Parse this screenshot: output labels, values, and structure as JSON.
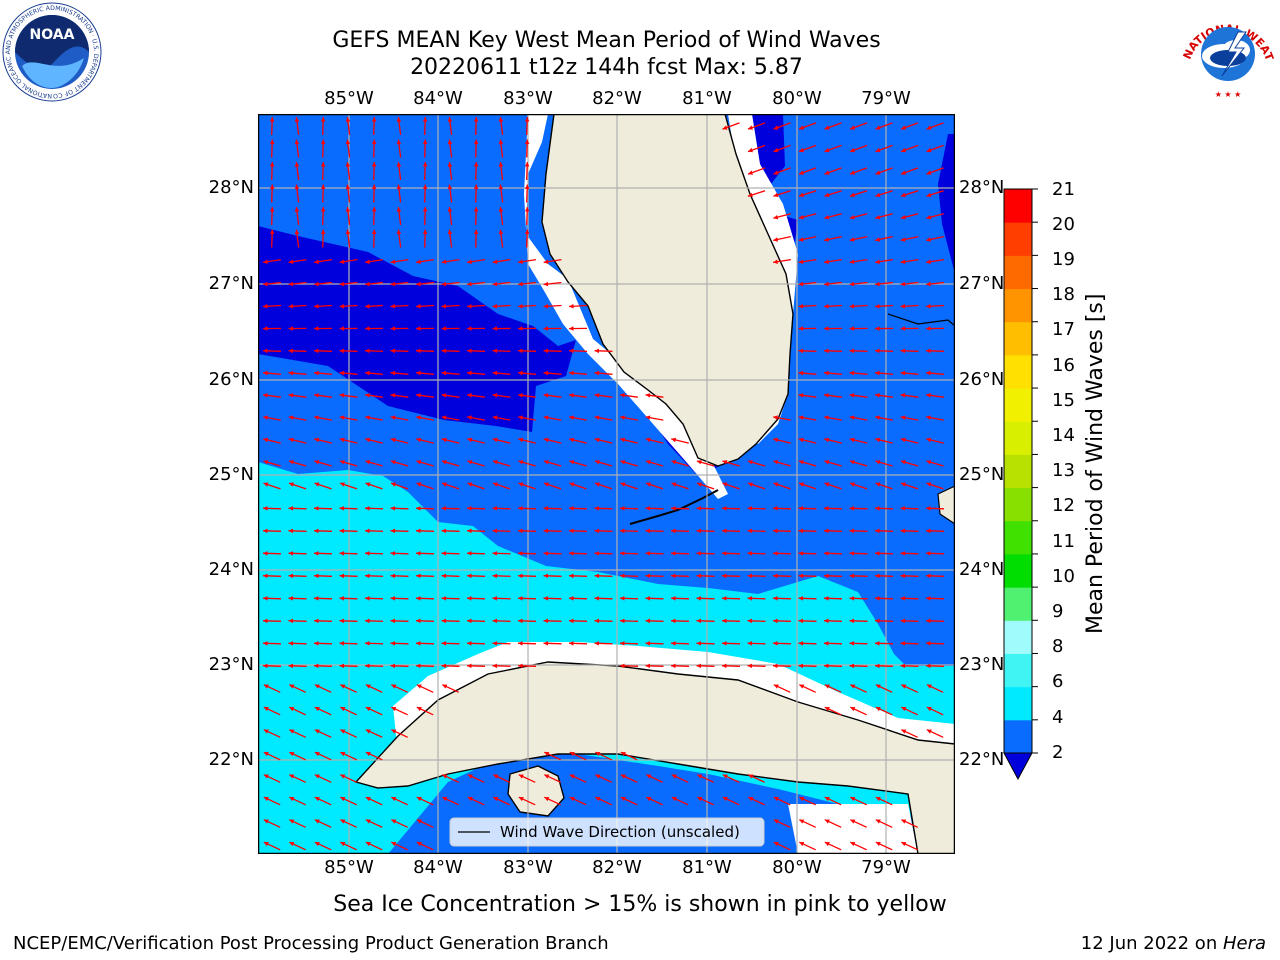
{
  "title_line1": "GEFS MEAN Key West Mean Period of Wind Waves",
  "title_line2": "20220611 t12z 144h fcst   Max: 5.87",
  "logos": {
    "left": {
      "name": "noaa-logo",
      "text": "NOAA",
      "ring": "NATIONAL OCEANIC AND ATMOSPHERIC ADMINISTRATION · U.S. DEPARTMENT OF COMMERCE"
    },
    "right": {
      "name": "nws-logo",
      "ring": "NATIONAL WEATHER SERVICE"
    }
  },
  "map": {
    "lon_ticks": [
      "85°W",
      "84°W",
      "83°W",
      "82°W",
      "81°W",
      "80°W",
      "79°W"
    ],
    "lat_ticks": [
      "28°N",
      "27°N",
      "26°N",
      "25°N",
      "24°N",
      "23°N",
      "22°N"
    ],
    "lon_range": [
      -86,
      -78.35
    ],
    "lat_range": [
      21.05,
      28.8
    ],
    "legend_label": "Wind Wave Direction (unscaled)"
  },
  "colorbar": {
    "label": "Mean Period of Wind Waves [s]",
    "levels": [
      "2",
      "4",
      "6",
      "8",
      "9",
      "10",
      "11",
      "12",
      "13",
      "14",
      "15",
      "16",
      "17",
      "18",
      "19",
      "20",
      "21"
    ],
    "colors": [
      "#0a6cff",
      "#00eaff",
      "#40f4f4",
      "#a0fcfc",
      "#50f070",
      "#00dd00",
      "#40e000",
      "#88e000",
      "#b8e000",
      "#d8f000",
      "#f0f000",
      "#ffe000",
      "#ffbe00",
      "#ff9400",
      "#ff6a00",
      "#ff3e00",
      "#ff0000"
    ],
    "under_color": "#0000dd"
  },
  "footer": {
    "sea_ice_note": "Sea Ice Concentration > 15% is shown in pink to yellow",
    "left": "NCEP/EMC/Verification Post Processing Product Generation Branch",
    "right_date": "12 Jun 2022 on ",
    "right_host": "Hera"
  },
  "colors": {
    "land": "#efecdc",
    "wave_lt4": "#0a6cff",
    "wave_lt2": "#0000dd",
    "wave_4_6": "#00eaff",
    "arrow": "#ff0000",
    "grid": "#b0b0b0"
  }
}
